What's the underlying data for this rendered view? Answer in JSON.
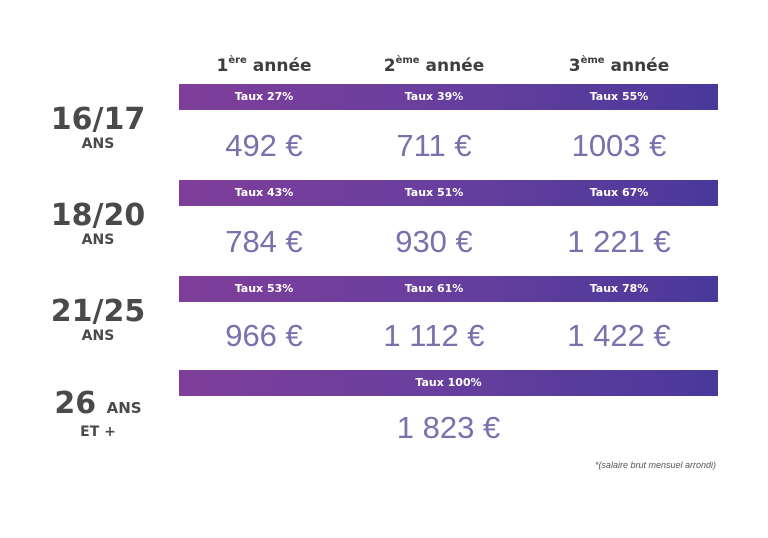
{
  "headers": [
    {
      "num": "1",
      "sup": "ère",
      "word": " année"
    },
    {
      "num": "2",
      "sup": "ème",
      "word": " année"
    },
    {
      "num": "3",
      "sup": "ème",
      "word": " année"
    }
  ],
  "rows": [
    {
      "age": "16/17",
      "age_sub": "ANS",
      "rates": [
        "Taux 27%",
        "Taux 39%",
        "Taux 55%"
      ],
      "amounts": [
        "492 €",
        "711 €",
        "1003 €"
      ]
    },
    {
      "age": "18/20",
      "age_sub": "ANS",
      "rates": [
        "Taux 43%",
        "Taux 51%",
        "Taux 67%"
      ],
      "amounts": [
        "784 €",
        "930 €",
        "1 221 €"
      ]
    },
    {
      "age": "21/25",
      "age_sub": "ANS",
      "rates": [
        "Taux 53%",
        "Taux 61%",
        "Taux 78%"
      ],
      "amounts": [
        "966 €",
        "1 112 €",
        "1 422 €"
      ]
    }
  ],
  "last_row": {
    "age_num": "26",
    "age_word": "ANS",
    "age_sub": "ET +",
    "rate": "Taux 100%",
    "amount": "1 823 €"
  },
  "footnote": "*(salaire brut mensuel arrondi)",
  "colors": {
    "bar_start": "#7f3e9a",
    "bar_end": "#49399a",
    "amount": "#7b70ad",
    "age": "#4a4a4a"
  }
}
